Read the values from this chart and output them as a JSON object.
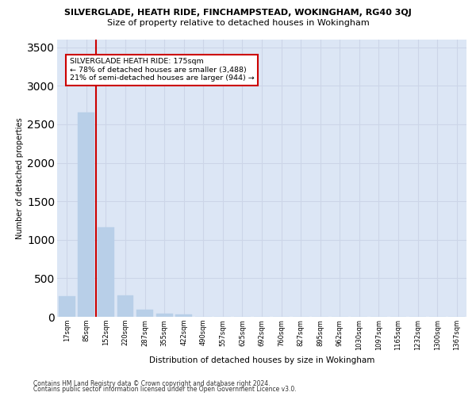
{
  "title_top": "SILVERGLADE, HEATH RIDE, FINCHAMPSTEAD, WOKINGHAM, RG40 3QJ",
  "title_sub": "Size of property relative to detached houses in Wokingham",
  "xlabel": "Distribution of detached houses by size in Wokingham",
  "ylabel": "Number of detached properties",
  "categories": [
    "17sqm",
    "85sqm",
    "152sqm",
    "220sqm",
    "287sqm",
    "355sqm",
    "422sqm",
    "490sqm",
    "557sqm",
    "625sqm",
    "692sqm",
    "760sqm",
    "827sqm",
    "895sqm",
    "962sqm",
    "1030sqm",
    "1097sqm",
    "1165sqm",
    "1232sqm",
    "1300sqm",
    "1367sqm"
  ],
  "values": [
    270,
    2650,
    1160,
    280,
    90,
    45,
    35,
    0,
    0,
    0,
    0,
    0,
    0,
    0,
    0,
    0,
    0,
    0,
    0,
    0,
    0
  ],
  "bar_color": "#b8cfe8",
  "bar_edge_color": "#b8cfe8",
  "vline_color": "#cc0000",
  "vline_x": 1.5,
  "annotation_text": "SILVERGLADE HEATH RIDE: 175sqm\n← 78% of detached houses are smaller (3,488)\n21% of semi-detached houses are larger (944) →",
  "ylim": [
    0,
    3600
  ],
  "yticks": [
    0,
    500,
    1000,
    1500,
    2000,
    2500,
    3000,
    3500
  ],
  "grid_color": "#ccd5e8",
  "background_color": "#dce6f5",
  "footer1": "Contains HM Land Registry data © Crown copyright and database right 2024.",
  "footer2": "Contains public sector information licensed under the Open Government Licence v3.0."
}
